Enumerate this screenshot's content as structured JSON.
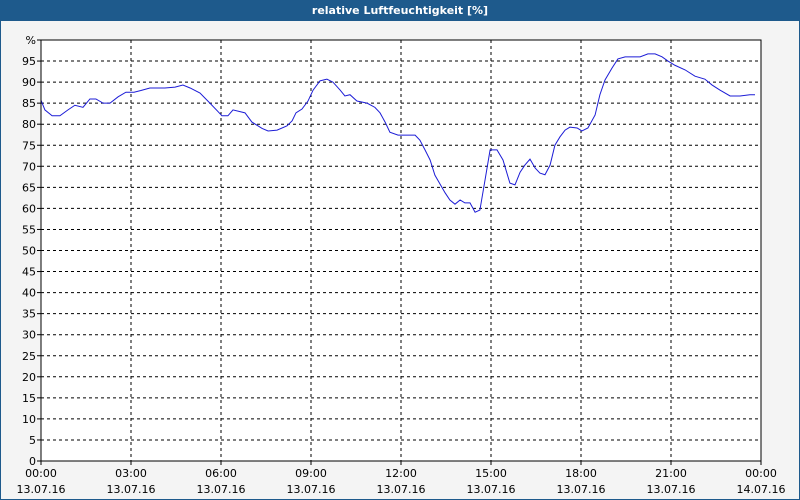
{
  "chart_data": {
    "type": "line",
    "title": "relative Luftfeuchtigkeit [%]",
    "x": [
      0,
      0.13,
      0.37,
      0.63,
      0.9,
      1.13,
      1.4,
      1.63,
      1.83,
      2.07,
      2.3,
      2.57,
      2.83,
      3.1,
      3.33,
      3.63,
      4.13,
      4.47,
      4.73,
      4.97,
      5.3,
      5.63,
      5.9,
      6.03,
      6.23,
      6.4,
      6.8,
      7.03,
      7.37,
      7.57,
      7.87,
      8.2,
      8.37,
      8.5,
      8.7,
      8.9,
      9.07,
      9.3,
      9.53,
      9.73,
      9.97,
      10.13,
      10.3,
      10.53,
      10.87,
      11.13,
      11.3,
      11.47,
      11.63,
      11.9,
      12.47,
      12.63,
      12.8,
      12.97,
      13.13,
      13.3,
      13.47,
      13.63,
      13.8,
      13.97,
      14.13,
      14.3,
      14.47,
      14.63,
      14.8,
      14.97,
      15.2,
      15.4,
      15.63,
      15.8,
      15.97,
      16.13,
      16.3,
      16.47,
      16.63,
      16.8,
      16.97,
      17.13,
      17.3,
      17.47,
      17.63,
      17.87,
      18.03,
      18.23,
      18.47,
      18.63,
      18.8,
      19.03,
      19.23,
      19.47,
      19.97,
      20.23,
      20.47,
      20.7,
      20.9,
      21.13,
      21.47,
      21.8,
      22.13,
      22.37,
      22.63,
      22.97,
      23.3,
      23.63,
      23.8
    ],
    "series": [
      {
        "color": "#1c1cd6",
        "values": [
          85.7,
          83.4,
          82,
          82,
          83.4,
          84.5,
          84,
          86,
          86,
          85,
          85,
          86.5,
          87.6,
          87.6,
          88,
          88.6,
          88.6,
          88.8,
          89.3,
          88.6,
          87.4,
          85,
          83,
          82,
          82,
          83.4,
          82.7,
          80.5,
          79,
          78.4,
          78.6,
          79.6,
          80.8,
          82.7,
          83.6,
          85.5,
          88.1,
          90.3,
          90.7,
          90,
          88.1,
          86.7,
          87,
          85.5,
          85,
          84,
          82.7,
          80.5,
          78.1,
          77.4,
          77.4,
          76.2,
          73.9,
          71.5,
          67.9,
          65.8,
          63.7,
          62,
          61,
          62,
          61.3,
          61.3,
          59.1,
          59.6,
          66.7,
          73.9,
          73.9,
          71.5,
          66,
          65.6,
          68.6,
          70.3,
          71.7,
          69.6,
          68.4,
          68,
          70.3,
          75,
          77,
          78.6,
          79.3,
          79.1,
          78.4,
          79.1,
          82.2,
          87,
          90.5,
          93.3,
          95.5,
          96,
          96,
          96.7,
          96.7,
          96,
          95,
          94,
          92.9,
          91.4,
          90.7,
          89.3,
          88.1,
          86.7,
          86.7,
          87,
          87
        ]
      }
    ],
    "xlim": [
      0,
      24
    ],
    "xticks": [
      {
        "value": 0,
        "label": "00:00"
      },
      {
        "value": 3,
        "label": "03:00"
      },
      {
        "value": 6,
        "label": "06:00"
      },
      {
        "value": 9,
        "label": "09:00"
      },
      {
        "value": 12,
        "label": "12:00"
      },
      {
        "value": 15,
        "label": "15:00"
      },
      {
        "value": 18,
        "label": "18:00"
      },
      {
        "value": 21,
        "label": "21:00"
      },
      {
        "value": 24,
        "label": "00:00"
      }
    ],
    "xtick_dates": [
      "13.07.16",
      "13.07.16",
      "13.07.16",
      "13.07.16",
      "13.07.16",
      "13.07.16",
      "13.07.16",
      "13.07.16",
      "14.07.16"
    ],
    "ylim": [
      0,
      100
    ],
    "yticks": [
      0,
      5,
      10,
      15,
      20,
      25,
      30,
      35,
      40,
      45,
      50,
      55,
      60,
      65,
      70,
      75,
      80,
      85,
      90,
      95,
      {
        "value": 100,
        "label": "%"
      }
    ],
    "grid": true
  }
}
